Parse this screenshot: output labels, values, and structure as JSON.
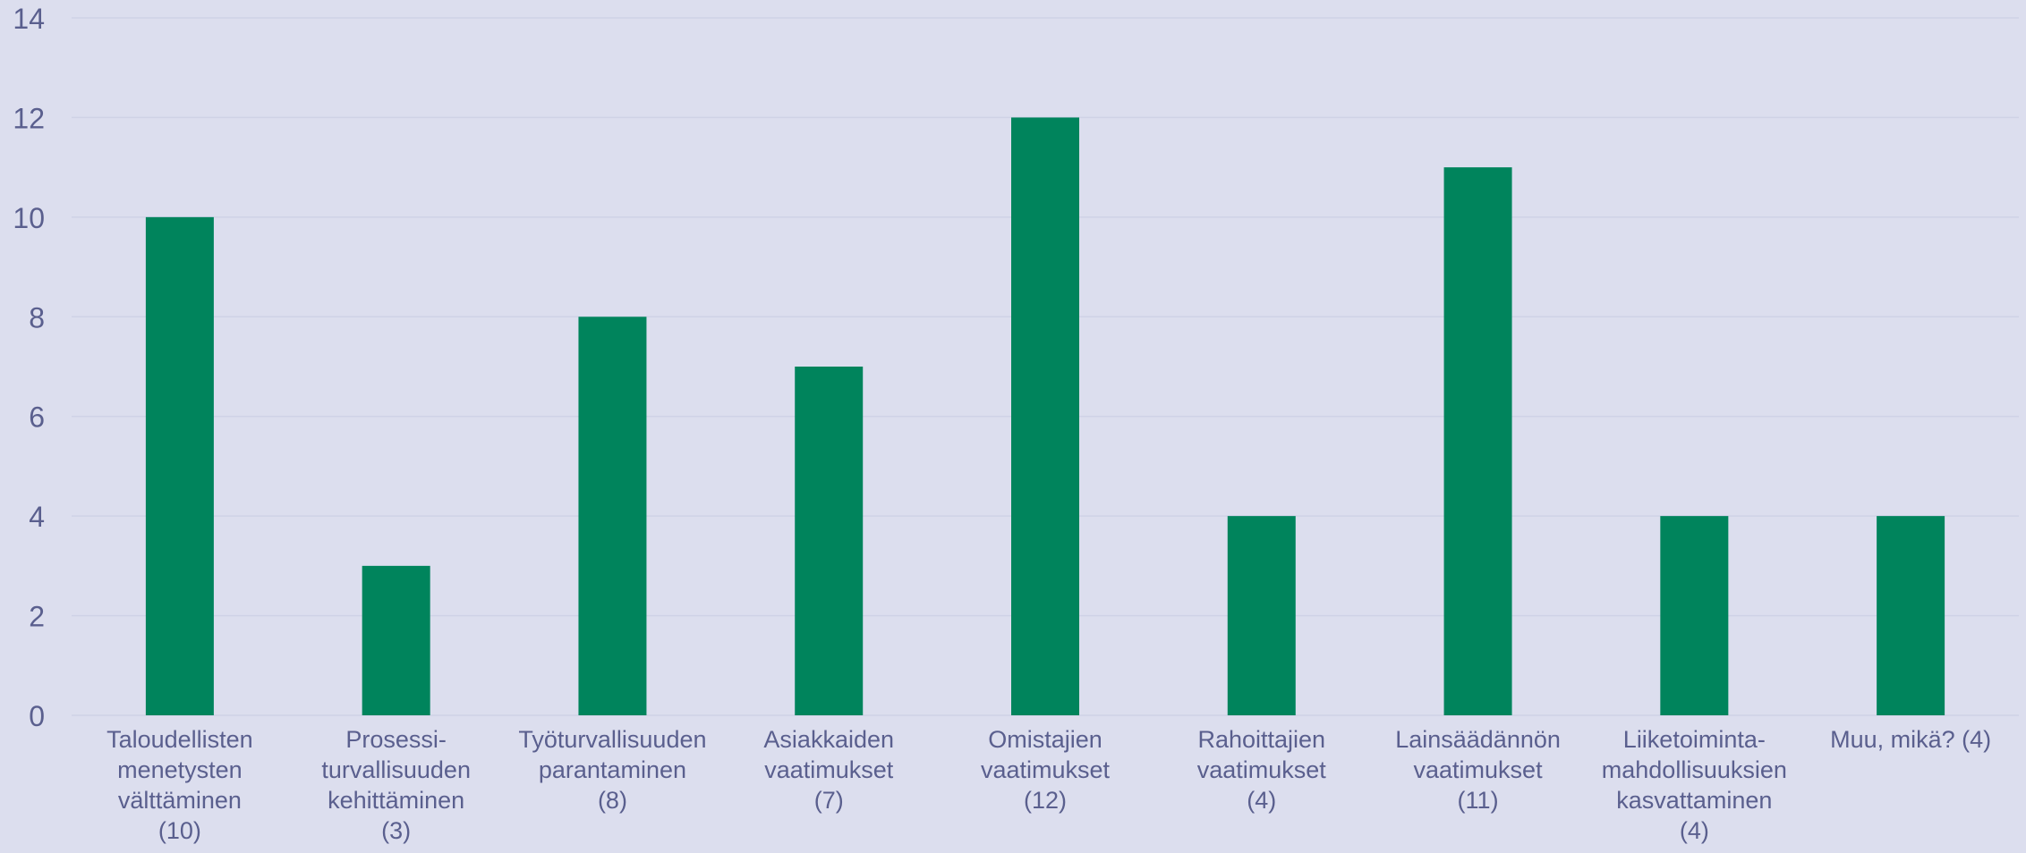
{
  "chart_data": {
    "type": "bar",
    "title": "",
    "xlabel": "",
    "ylabel": "",
    "ylim": [
      0,
      14
    ],
    "yticks": [
      0,
      2,
      4,
      6,
      8,
      10,
      12,
      14
    ],
    "grid": true,
    "legend": "none",
    "categories": [
      [
        "Taloudellisten",
        "menetysten",
        "välttäminen",
        "(10)"
      ],
      [
        "Prosessi-",
        "turvallisuuden",
        "kehittäminen",
        "(3)"
      ],
      [
        "Työturvallisuuden",
        "parantaminen",
        "(8)"
      ],
      [
        "Asiakkaiden",
        "vaatimukset",
        "(7)"
      ],
      [
        "Omistajien",
        "vaatimukset",
        "(12)"
      ],
      [
        "Rahoittajien",
        "vaatimukset",
        "(4)"
      ],
      [
        "Lainsäädännön",
        "vaatimukset",
        "(11)"
      ],
      [
        "Liiketoiminta-",
        "mahdollisuuksien",
        "kasvattaminen",
        "(4)"
      ],
      [
        "Muu, mikä? (4)"
      ]
    ],
    "values": [
      10,
      3,
      8,
      7,
      12,
      4,
      11,
      4,
      4
    ],
    "colors": {
      "bar": "#00845c",
      "background": "#dcdeee",
      "grid": "#cfd2e6",
      "text": "#5a5f8e"
    }
  }
}
